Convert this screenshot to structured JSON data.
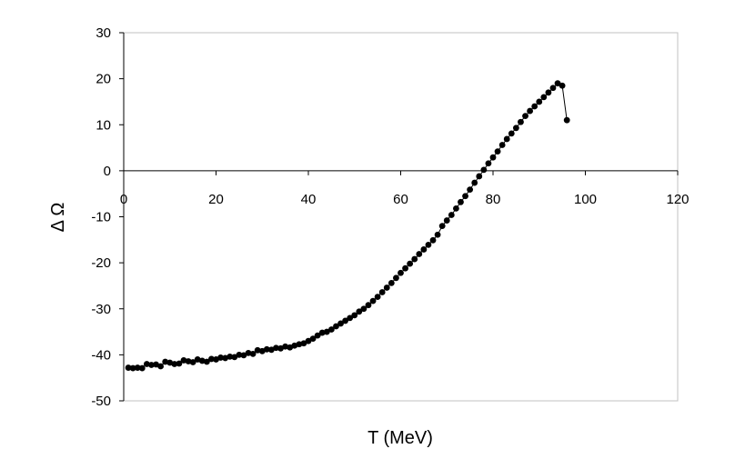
{
  "chart_data": {
    "type": "line",
    "title": "",
    "xlabel": "T (MeV)",
    "ylabel": "Δ Ω",
    "xlim": [
      0,
      120
    ],
    "ylim": [
      -50,
      30
    ],
    "x_ticks": [
      "0",
      "20",
      "40",
      "60",
      "80",
      "100",
      "120"
    ],
    "y_ticks": [
      "30",
      "20",
      "10",
      "0",
      "-10",
      "-20",
      "-30",
      "-40",
      "-50"
    ],
    "grid": false,
    "legend": "none",
    "colors": {
      "marker": "#000000",
      "line": "#000000",
      "frame": "#c0c0c0",
      "axis": "#000000"
    },
    "series": [
      {
        "x": [
          1,
          2,
          3,
          4,
          5,
          6,
          7,
          8,
          9,
          10,
          11,
          12,
          13,
          14,
          15,
          16,
          17,
          18,
          19,
          20,
          21,
          22,
          23,
          24,
          25,
          26,
          27,
          28,
          29,
          30,
          31,
          32,
          33,
          34,
          35,
          36,
          37,
          38,
          39,
          40,
          41,
          42,
          43,
          44,
          45,
          46,
          47,
          48,
          49,
          50,
          51,
          52,
          53,
          54,
          55,
          56,
          57,
          58,
          59,
          60,
          61,
          62,
          63,
          64,
          65,
          66,
          67,
          68,
          69,
          70,
          71,
          72,
          73,
          74,
          75,
          76,
          77,
          78,
          79,
          80,
          81,
          82,
          83,
          84,
          85,
          86,
          87,
          88,
          89,
          90,
          91,
          92,
          93,
          94,
          95,
          96
        ],
        "y": [
          -42.8,
          -42.9,
          -42.8,
          -42.9,
          -42.0,
          -42.2,
          -42.1,
          -42.5,
          -41.5,
          -41.7,
          -42.0,
          -41.9,
          -41.2,
          -41.4,
          -41.6,
          -41.0,
          -41.3,
          -41.5,
          -40.9,
          -41.0,
          -40.6,
          -40.7,
          -40.4,
          -40.5,
          -40.0,
          -40.1,
          -39.6,
          -39.8,
          -39.0,
          -39.2,
          -38.8,
          -38.9,
          -38.5,
          -38.6,
          -38.2,
          -38.4,
          -38.0,
          -37.7,
          -37.5,
          -37.0,
          -36.5,
          -35.8,
          -35.2,
          -35.0,
          -34.5,
          -33.8,
          -33.2,
          -32.6,
          -32.0,
          -31.4,
          -30.6,
          -30.0,
          -29.2,
          -28.3,
          -27.4,
          -26.4,
          -25.4,
          -24.4,
          -23.3,
          -22.2,
          -21.2,
          -20.2,
          -19.2,
          -18.1,
          -17.1,
          -16.1,
          -15.1,
          -13.9,
          -12.0,
          -10.8,
          -9.6,
          -8.2,
          -6.8,
          -5.5,
          -4.1,
          -2.6,
          -1.2,
          0.2,
          1.6,
          2.9,
          4.2,
          5.6,
          6.9,
          8.1,
          9.3,
          10.6,
          11.9,
          13.0,
          14.0,
          15.0,
          16.0,
          17.0,
          18.0,
          19.0,
          18.5,
          11.0
        ]
      }
    ]
  }
}
